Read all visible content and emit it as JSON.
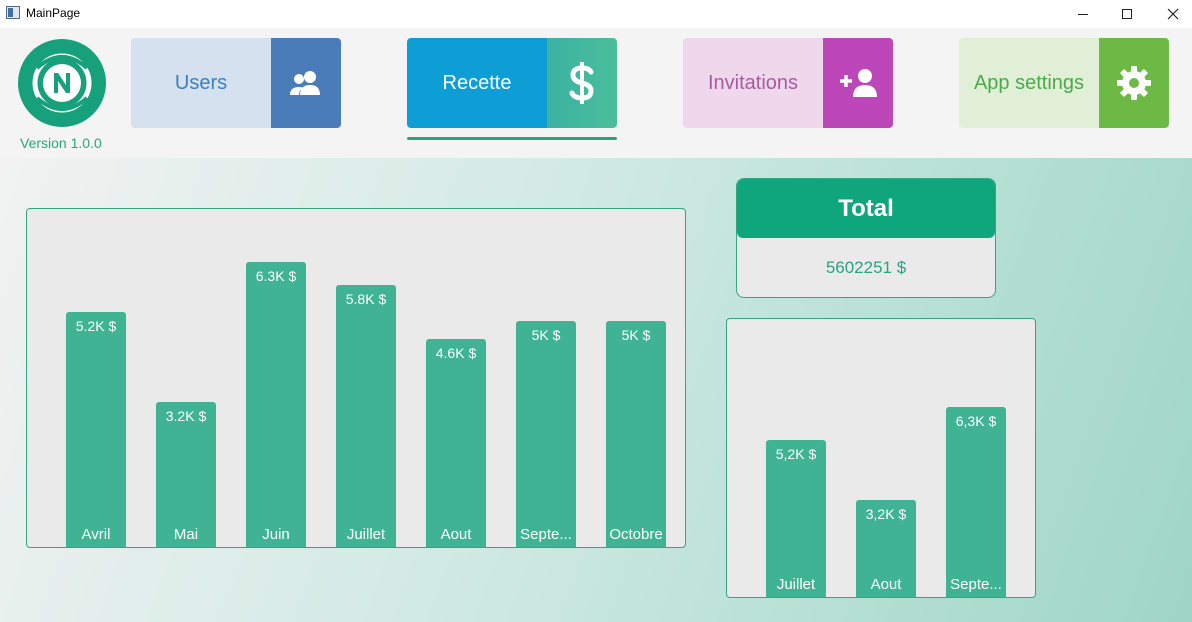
{
  "window": {
    "title": "MainPage"
  },
  "header": {
    "version": "Version 1.0.0",
    "nav": [
      {
        "label": "Users",
        "icon": "users-icon"
      },
      {
        "label": "Recette",
        "icon": "dollar-icon"
      },
      {
        "label": "Invitations",
        "icon": "add-user-icon"
      },
      {
        "label": "App settings",
        "icon": "gear-icon"
      }
    ],
    "active": "Recette"
  },
  "total": {
    "title": "Total",
    "value": "5602251 $"
  },
  "chart_data": [
    {
      "type": "bar",
      "categories": [
        "Avril",
        "Mai",
        "Juin",
        "Juillet",
        "Aout",
        "Septe...",
        "Octobre"
      ],
      "labels": [
        "5.2K $",
        "3.2K $",
        "6.3K $",
        "5.8K $",
        "4.6K $",
        "5K $",
        "5K $"
      ],
      "values": [
        5.2,
        3.2,
        6.3,
        5.8,
        4.6,
        5,
        5
      ]
    },
    {
      "type": "bar",
      "categories": [
        "Juillet",
        "Aout",
        "Septe..."
      ],
      "labels": [
        "5,2K $",
        "3,2K $",
        "6,3K $"
      ],
      "values": [
        5.2,
        3.2,
        6.3
      ]
    }
  ],
  "colors": {
    "accent": "#0fa67c",
    "bar": "#3fb394",
    "users": "#4a7cba",
    "recette": "#0d9ed6",
    "invitations": "#bd47b9",
    "settings": "#6db946"
  }
}
